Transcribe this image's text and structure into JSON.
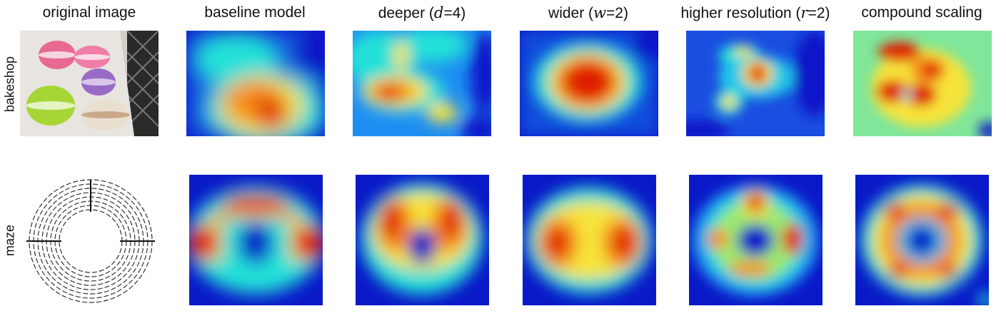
{
  "columns": [
    {
      "label": "original image"
    },
    {
      "label": "baseline model"
    },
    {
      "label_pre": "deeper (",
      "var": "d",
      "label_post": "=4)"
    },
    {
      "label_pre": "wider (",
      "var": "w",
      "label_post": "=2)"
    },
    {
      "label_pre": "higher resolution (",
      "var": "r",
      "label_post": "=2)"
    },
    {
      "label": "compound scaling"
    }
  ],
  "rows": [
    {
      "label": "bakeshop"
    },
    {
      "label": "maze"
    }
  ],
  "colors": {
    "heat_low": "#0a19c8",
    "heat_mid": "#1fd6e6",
    "heat_high": "#e01f00",
    "photo_bg": "#cfcac4"
  }
}
